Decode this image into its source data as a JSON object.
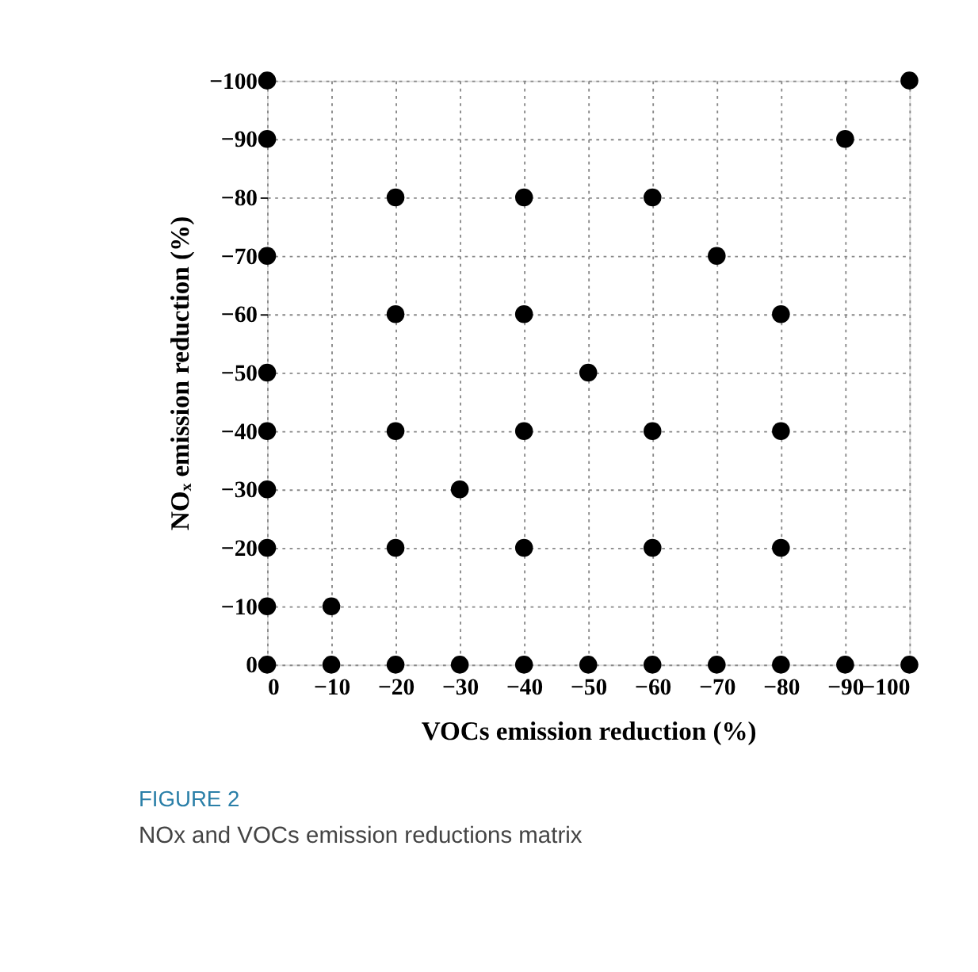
{
  "chart_data": {
    "type": "scatter",
    "xlabel": "VOCs emission reduction (%)",
    "ylabel": "NOₓ emission reduction (%)",
    "x": [
      0,
      -10,
      -20,
      -30,
      -40,
      -50,
      -60,
      -70,
      -80,
      -90,
      -100,
      0,
      0,
      0,
      0,
      0,
      0,
      0,
      0,
      -10,
      -20,
      -20,
      -20,
      -20,
      -30,
      -40,
      -40,
      -40,
      -40,
      -50,
      -60,
      -60,
      -60,
      -70,
      -80,
      -80,
      -80,
      -90,
      -100
    ],
    "values": [
      0,
      0,
      0,
      0,
      0,
      0,
      0,
      0,
      0,
      0,
      0,
      -10,
      -20,
      -30,
      -40,
      -50,
      -70,
      -90,
      -100,
      -10,
      -20,
      -40,
      -60,
      -80,
      -30,
      -20,
      -40,
      -60,
      -80,
      -50,
      -20,
      -40,
      -80,
      -70,
      -20,
      -40,
      -60,
      -90,
      -100
    ],
    "color": "#000000",
    "marker": "circle",
    "xlim": [
      0,
      -100
    ],
    "ylim": [
      0,
      -100
    ],
    "xticks": [
      0,
      -10,
      -20,
      -30,
      -40,
      -50,
      -60,
      -70,
      -80,
      -90,
      -100
    ],
    "yticks": [
      0,
      -10,
      -20,
      -30,
      -40,
      -50,
      -60,
      -70,
      -80,
      -90,
      -100
    ],
    "grid": true,
    "annotations": [
      "FIGURE 2",
      "NOx and VOCs emission reductions matrix"
    ]
  }
}
